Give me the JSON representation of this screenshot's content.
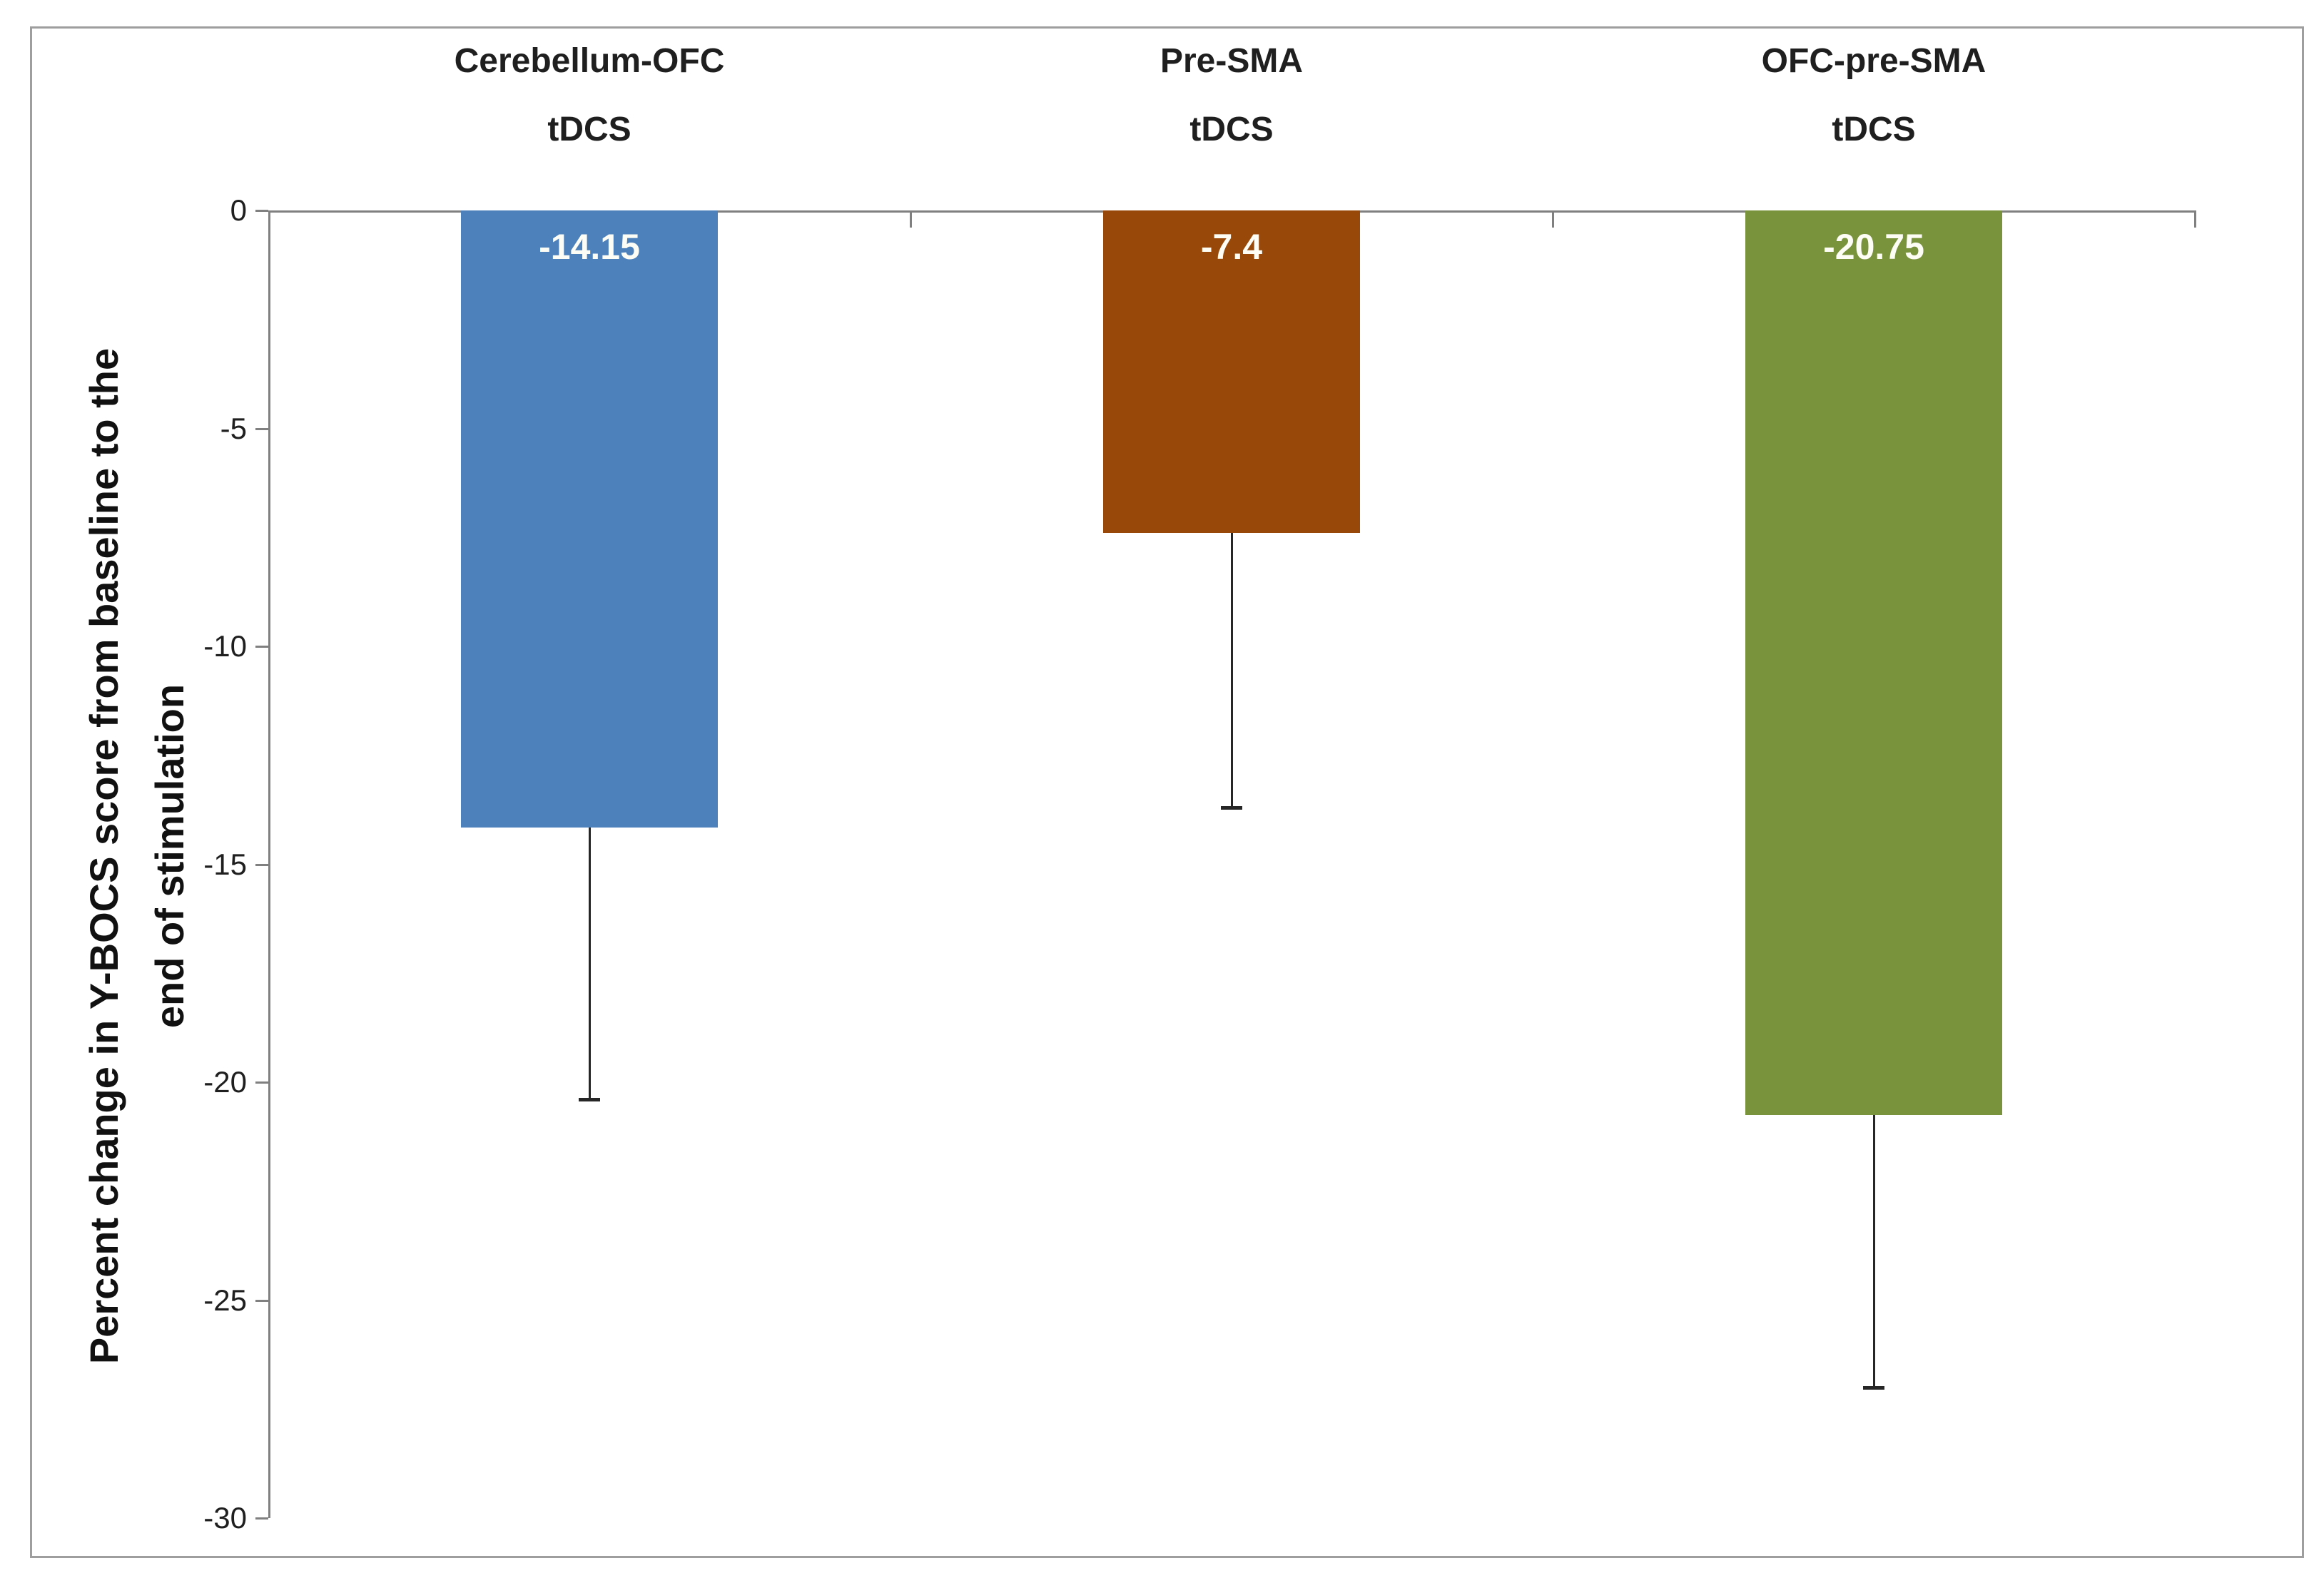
{
  "chart_data": {
    "type": "bar",
    "title": "",
    "categories": [
      {
        "line1": "Cerebellum-OFC",
        "line2": "tDCS"
      },
      {
        "line1": "Pre-SMA",
        "line2": "tDCS"
      },
      {
        "line1": "OFC-pre-SMA",
        "line2": "tDCS"
      }
    ],
    "values": [
      -14.15,
      -7.4,
      -20.75
    ],
    "value_labels": [
      "-14.15",
      "-7.4",
      "-20.75"
    ],
    "error_lengths": [
      6.25,
      6.3,
      6.25
    ],
    "error_bar_ends": [
      -20.4,
      -13.7,
      -27.0
    ],
    "bar_colors": [
      "#4D81BC",
      "#98490A",
      "#79923C"
    ],
    "ylabel_line1": "Percent change in Y-BOCS score from baseline to the",
    "ylabel_line2": "end of stimulation",
    "ylabel": "Percent change in Y-BOCS score from baseline to the end of stimulation",
    "xlabel": "",
    "yticks": [
      0,
      -5,
      -10,
      -15,
      -20,
      -25,
      -30
    ],
    "ytick_labels": [
      "0",
      "-5",
      "-10",
      "-15",
      "-20",
      "-25",
      "-30"
    ],
    "ylim": [
      0,
      -30
    ],
    "grid": false,
    "legend": "none",
    "error_bar_style": "downward with end cap"
  },
  "style": {
    "axis_color": "#808080",
    "frame_border_color": "#9E9E9E",
    "text_color": "#1F1F1F",
    "error_bar_color": "#262626",
    "value_label_color": "#FDFCF5",
    "background": "#FFFFFF"
  }
}
